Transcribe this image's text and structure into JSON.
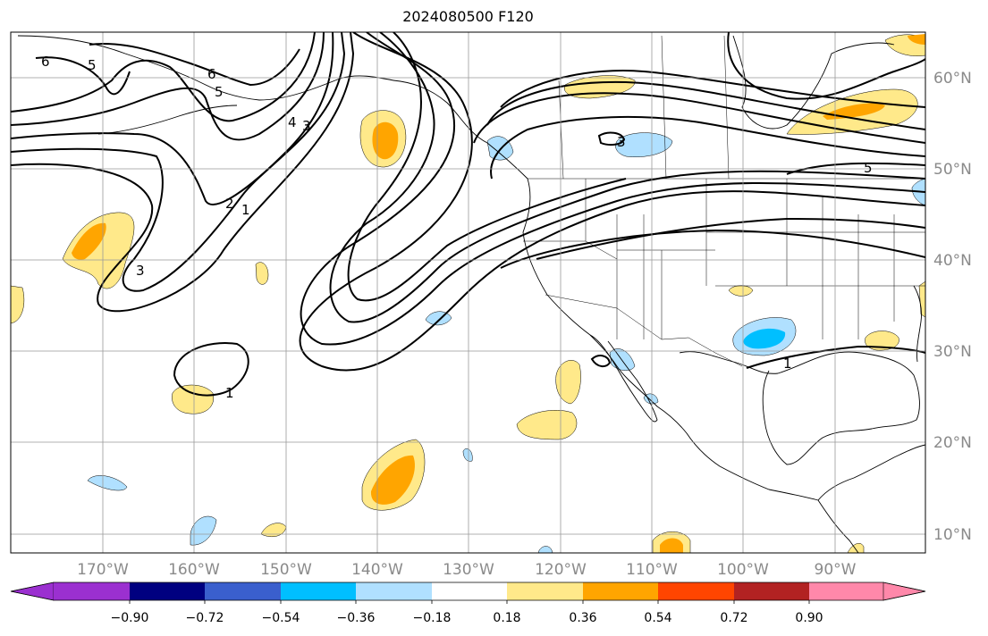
{
  "title": "2024080500 F120",
  "longitude_labels": [
    "170°W",
    "160°W",
    "150°W",
    "140°W",
    "130°W",
    "120°W",
    "110°W",
    "100°W",
    "90°W"
  ],
  "latitude_labels": [
    "60°N",
    "50°N",
    "40°N",
    "30°N",
    "20°N",
    "10°N"
  ],
  "colorbar": {
    "ticks": [
      "−0.90",
      "−0.72",
      "−0.54",
      "−0.36",
      "−0.18",
      "0.18",
      "0.36",
      "0.54",
      "0.72",
      "0.90"
    ],
    "colors": [
      "#9b30d0",
      "#000080",
      "#3a5fcd",
      "#00bfff",
      "#b0e0ff",
      "#ffffff",
      "#ffe98a",
      "#ffa500",
      "#ff4500",
      "#b22222",
      "#ff88aa"
    ]
  },
  "contour_labels": [
    "6",
    "5",
    "6",
    "5",
    "4",
    "3",
    "2",
    "1",
    "3",
    "1",
    "3",
    "5",
    "1"
  ],
  "fill_colors": {
    "pos_light": "#ffe98a",
    "pos_mid": "#ffa500",
    "neg_light": "#b0e0ff",
    "neg_mid": "#00bfff"
  }
}
